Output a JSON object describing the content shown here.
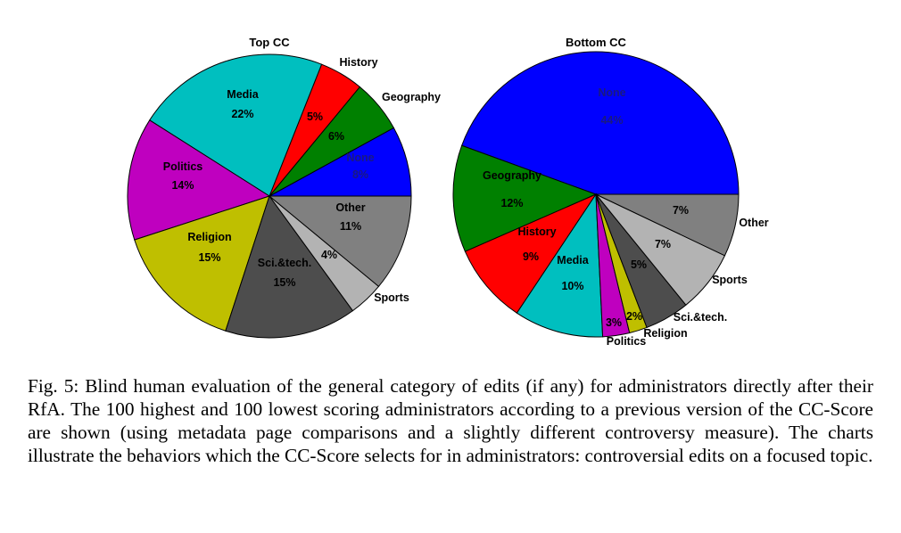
{
  "chart_data": [
    {
      "type": "pie",
      "title": "Top CC",
      "slices": [
        {
          "name": "None",
          "pct_label": "8%",
          "value": 8,
          "color": "#0000ff",
          "label_color": "#1a1a80"
        },
        {
          "name": "Geography",
          "pct_label": "6%",
          "value": 6,
          "color": "#008000",
          "label_color": "#000000"
        },
        {
          "name": "History",
          "pct_label": "5%",
          "value": 5,
          "color": "#ff0000",
          "label_color": "#000000"
        },
        {
          "name": "Media",
          "pct_label": "22%",
          "value": 22,
          "color": "#00bfbf",
          "label_color": "#000000"
        },
        {
          "name": "Politics",
          "pct_label": "14%",
          "value": 14,
          "color": "#bf00bf",
          "label_color": "#000000"
        },
        {
          "name": "Religion",
          "pct_label": "15%",
          "value": 15,
          "color": "#bfbf00",
          "label_color": "#000000"
        },
        {
          "name": "Sci.&tech.",
          "pct_label": "15%",
          "value": 15,
          "color": "#4d4d4d",
          "label_color": "#000000"
        },
        {
          "name": "Sports",
          "pct_label": "4%",
          "value": 4,
          "color": "#b3b3b3",
          "label_color": "#000000"
        },
        {
          "name": "Other",
          "pct_label": "11%",
          "value": 11,
          "color": "#808080",
          "label_color": "#000000"
        }
      ]
    },
    {
      "type": "pie",
      "title": "Bottom CC",
      "slices": [
        {
          "name": "None",
          "pct_label": "44%",
          "value": 44,
          "color": "#0000ff",
          "label_color": "#1a1a80"
        },
        {
          "name": "Geography",
          "pct_label": "12%",
          "value": 12,
          "color": "#008000",
          "label_color": "#000000"
        },
        {
          "name": "History",
          "pct_label": "9%",
          "value": 9,
          "color": "#ff0000",
          "label_color": "#000000"
        },
        {
          "name": "Media",
          "pct_label": "10%",
          "value": 10,
          "color": "#00bfbf",
          "label_color": "#000000"
        },
        {
          "name": "Politics",
          "pct_label": "3%",
          "value": 3,
          "color": "#bf00bf",
          "label_color": "#000000"
        },
        {
          "name": "Religion",
          "pct_label": "2%",
          "value": 2,
          "color": "#bfbf00",
          "label_color": "#000000"
        },
        {
          "name": "Sci.&tech.",
          "pct_label": "5%",
          "value": 5,
          "color": "#4d4d4d",
          "label_color": "#000000"
        },
        {
          "name": "Sports",
          "pct_label": "7%",
          "value": 7,
          "color": "#b3b3b3",
          "label_color": "#000000"
        },
        {
          "name": "Other",
          "pct_label": "7%",
          "value": 7,
          "color": "#808080",
          "label_color": "#000000"
        }
      ]
    }
  ],
  "caption": "Fig. 5: Blind human evaluation of the general category of edits (if any) for administrators directly after their RfA. The 100 highest and 100 lowest scoring administrators according to a previous version of the CC-Score are shown (using metadata page comparisons and a slightly different controversy measure). The charts illustrate the behaviors which the CC-Score selects for in administrators: controversial edits on a focused topic."
}
